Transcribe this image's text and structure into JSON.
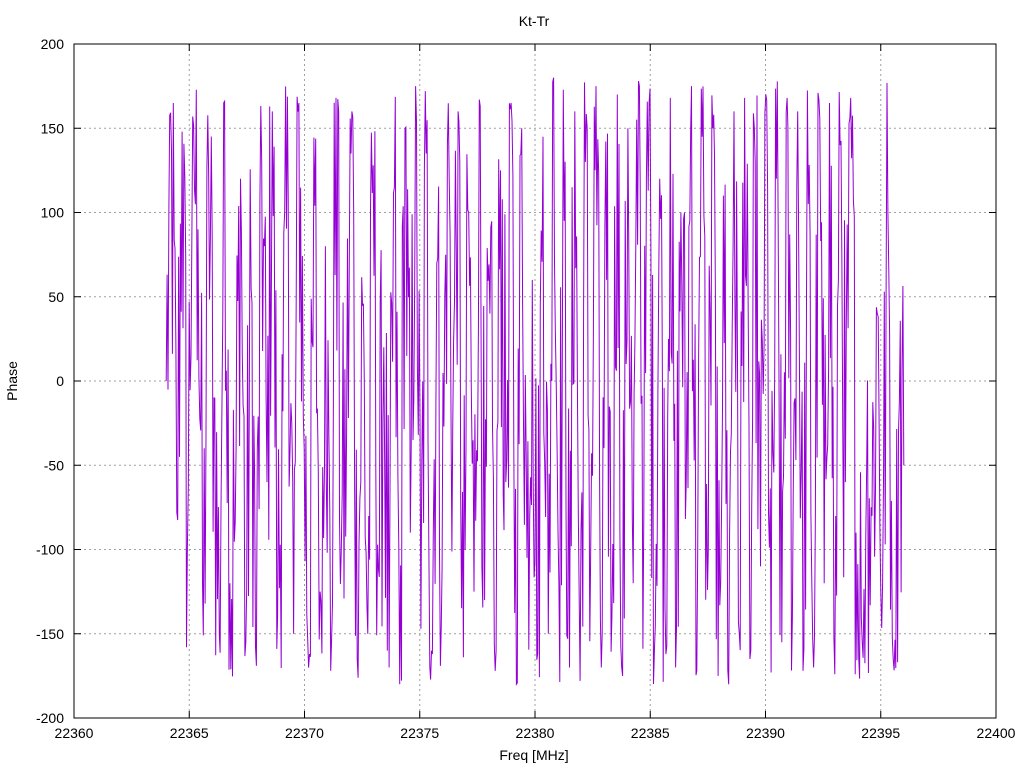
{
  "chart_data": {
    "type": "line",
    "title": "Kt-Tr",
    "xlabel": "Freq [MHz]",
    "ylabel": "Phase",
    "xlim": [
      22360,
      22400
    ],
    "ylim": [
      -200,
      200
    ],
    "xticks": [
      22360,
      22365,
      22370,
      22375,
      22380,
      22385,
      22390,
      22395,
      22400
    ],
    "yticks": [
      -200,
      -150,
      -100,
      -50,
      0,
      50,
      100,
      150,
      200
    ],
    "grid": true,
    "legend": "none",
    "series": [
      {
        "color": "#9400d3",
        "x_start": 22364.0,
        "x_end": 22396.0,
        "sampled_values": [
          0,
          137,
          -78,
          148,
          -98,
          157,
          90,
          -151,
          120,
          -10,
          -150,
          166,
          -120,
          -84,
          120,
          -155,
          55,
          -169,
          130,
          -60,
          160,
          -140,
          -18,
          109,
          -150,
          165,
          -40,
          -162,
          104,
          -125,
          80,
          -172,
          168,
          -100,
          -30,
          160,
          -165,
          45,
          -150,
          128,
          -112,
          20,
          -170,
          115,
          -180,
          150,
          -90,
          175,
          -147,
          135,
          -160,
          70,
          -110,
          140,
          -30,
          160,
          -164,
          100,
          -125,
          167,
          -130,
          40,
          -172,
          125,
          -60,
          165,
          -180,
          150,
          -105,
          60,
          -162,
          145,
          -150,
          180,
          -120,
          95,
          -170,
          160,
          -178,
          130,
          -100,
          175,
          -170,
          60,
          -140,
          170,
          -175,
          150,
          -120,
          178,
          -80,
          165,
          -160,
          120,
          -135,
          168,
          -170,
          100,
          -60,
          175,
          -172,
          145,
          -124,
          150,
          -175,
          110,
          -180,
          160,
          -150,
          168,
          -165,
          130,
          -110,
          170,
          -173,
          120,
          -155,
          168,
          -140,
          160,
          -172,
          105,
          -170,
          167,
          -120,
          165,
          -174,
          140,
          -60,
          168,
          -90,
          -140,
          -50,
          -80,
          40,
          -120,
          100,
          -165,
          -30,
          -50
        ]
      }
    ]
  }
}
